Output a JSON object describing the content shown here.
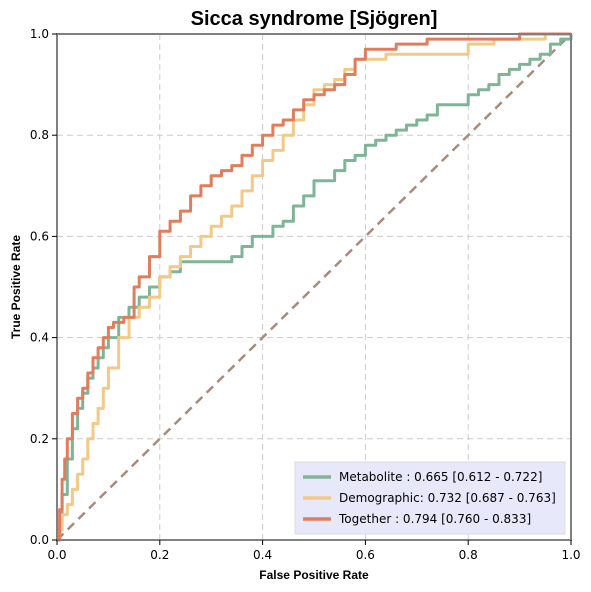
{
  "chart_data": {
    "type": "line",
    "title": "Sicca syndrome [Sjögren]",
    "xlabel": "False Positive Rate",
    "ylabel": "True Positive Rate",
    "xlim": [
      0,
      1
    ],
    "ylim": [
      0,
      1
    ],
    "xticks": [
      "0.0",
      "0.2",
      "0.4",
      "0.6",
      "0.8",
      "1.0"
    ],
    "yticks": [
      "0.0",
      "0.2",
      "0.4",
      "0.6",
      "0.8",
      "1.0"
    ],
    "grid": true,
    "legend_position": "lower-right",
    "chance_line": {
      "x": [
        0,
        1
      ],
      "y": [
        0,
        1
      ],
      "color": "#a88b7a"
    },
    "series": [
      {
        "name": "Metabolite",
        "legend_label": "Metabolite     : 0.665 [0.612 - 0.722]",
        "color": "#7fb597",
        "x": [
          0,
          0.005,
          0.01,
          0.02,
          0.03,
          0.04,
          0.05,
          0.06,
          0.07,
          0.08,
          0.09,
          0.1,
          0.12,
          0.14,
          0.16,
          0.18,
          0.2,
          0.22,
          0.24,
          0.26,
          0.28,
          0.3,
          0.34,
          0.36,
          0.38,
          0.4,
          0.42,
          0.44,
          0.46,
          0.48,
          0.5,
          0.52,
          0.54,
          0.56,
          0.58,
          0.6,
          0.62,
          0.64,
          0.66,
          0.68,
          0.7,
          0.72,
          0.74,
          0.76,
          0.8,
          0.82,
          0.84,
          0.86,
          0.88,
          0.9,
          0.92,
          0.94,
          0.96,
          0.98,
          1.0
        ],
        "y": [
          0,
          0.04,
          0.09,
          0.16,
          0.22,
          0.26,
          0.29,
          0.32,
          0.34,
          0.36,
          0.38,
          0.4,
          0.44,
          0.46,
          0.48,
          0.5,
          0.52,
          0.53,
          0.55,
          0.55,
          0.55,
          0.55,
          0.56,
          0.58,
          0.6,
          0.6,
          0.62,
          0.63,
          0.66,
          0.68,
          0.71,
          0.71,
          0.73,
          0.75,
          0.76,
          0.78,
          0.79,
          0.8,
          0.81,
          0.82,
          0.83,
          0.84,
          0.86,
          0.86,
          0.88,
          0.89,
          0.9,
          0.92,
          0.93,
          0.94,
          0.95,
          0.96,
          0.98,
          0.99,
          1.0
        ]
      },
      {
        "name": "Demographic",
        "legend_label": "Demographic: 0.732 [0.687 - 0.763]",
        "color": "#f2c987",
        "x": [
          0,
          0.005,
          0.01,
          0.02,
          0.03,
          0.04,
          0.05,
          0.06,
          0.07,
          0.08,
          0.09,
          0.1,
          0.12,
          0.14,
          0.16,
          0.18,
          0.2,
          0.22,
          0.24,
          0.26,
          0.28,
          0.3,
          0.32,
          0.34,
          0.36,
          0.38,
          0.4,
          0.42,
          0.44,
          0.46,
          0.48,
          0.5,
          0.52,
          0.54,
          0.56,
          0.58,
          0.6,
          0.62,
          0.64,
          0.66,
          0.68,
          0.7,
          0.72,
          0.74,
          0.76,
          0.78,
          0.8,
          0.85,
          0.9,
          0.95,
          1.0
        ],
        "y": [
          0,
          0.02,
          0.05,
          0.07,
          0.1,
          0.13,
          0.16,
          0.2,
          0.23,
          0.26,
          0.3,
          0.34,
          0.4,
          0.44,
          0.46,
          0.48,
          0.52,
          0.54,
          0.56,
          0.58,
          0.6,
          0.62,
          0.64,
          0.66,
          0.69,
          0.72,
          0.75,
          0.77,
          0.8,
          0.83,
          0.86,
          0.89,
          0.9,
          0.91,
          0.93,
          0.95,
          0.95,
          0.95,
          0.96,
          0.96,
          0.96,
          0.96,
          0.96,
          0.96,
          0.96,
          0.96,
          0.98,
          0.99,
          0.99,
          1.0,
          1.0
        ]
      },
      {
        "name": "Together",
        "legend_label": "Together       : 0.794 [0.760 - 0.833]",
        "color": "#e07d5c",
        "x": [
          0,
          0.005,
          0.01,
          0.015,
          0.02,
          0.03,
          0.04,
          0.05,
          0.06,
          0.07,
          0.08,
          0.09,
          0.1,
          0.11,
          0.12,
          0.13,
          0.14,
          0.15,
          0.16,
          0.18,
          0.2,
          0.22,
          0.24,
          0.26,
          0.28,
          0.3,
          0.32,
          0.34,
          0.36,
          0.38,
          0.4,
          0.42,
          0.44,
          0.46,
          0.48,
          0.5,
          0.52,
          0.54,
          0.56,
          0.58,
          0.6,
          0.62,
          0.64,
          0.66,
          0.68,
          0.7,
          0.72,
          0.74,
          0.76,
          0.8,
          0.85,
          0.9,
          0.95,
          1.0
        ],
        "y": [
          0,
          0.06,
          0.12,
          0.16,
          0.2,
          0.25,
          0.28,
          0.3,
          0.33,
          0.36,
          0.38,
          0.4,
          0.42,
          0.43,
          0.43,
          0.44,
          0.44,
          0.5,
          0.52,
          0.56,
          0.61,
          0.63,
          0.65,
          0.68,
          0.7,
          0.72,
          0.73,
          0.74,
          0.76,
          0.78,
          0.8,
          0.82,
          0.83,
          0.85,
          0.87,
          0.88,
          0.89,
          0.9,
          0.92,
          0.95,
          0.97,
          0.97,
          0.97,
          0.98,
          0.98,
          0.98,
          0.99,
          0.99,
          0.99,
          0.99,
          0.99,
          1.0,
          1.0,
          1.0
        ]
      }
    ],
    "legend_background": "#e8e8fb"
  }
}
